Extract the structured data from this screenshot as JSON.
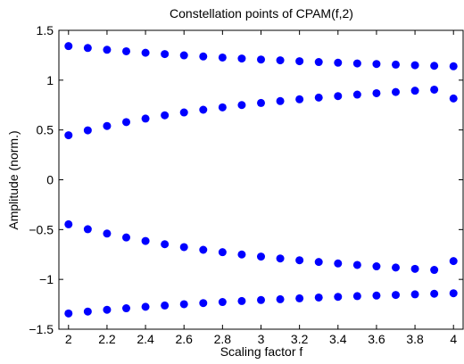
{
  "chart_data": {
    "type": "scatter",
    "title": "Constellation points of CPAM(f,2)",
    "xlabel": "Scaling factor f",
    "ylabel": "Amplitude (norm.)",
    "xlim": [
      1.95,
      4.05
    ],
    "ylim": [
      -1.5,
      1.5
    ],
    "x_ticks": [
      2,
      2.2,
      2.4,
      2.6,
      2.8,
      3,
      3.2,
      3.4,
      3.6,
      3.8,
      4
    ],
    "x_tick_labels": [
      "2",
      "2.2",
      "2.4",
      "2.6",
      "2.8",
      "3",
      "3.2",
      "3.4",
      "3.6",
      "3.8",
      "4"
    ],
    "y_ticks": [
      -1.5,
      -1,
      -0.5,
      0,
      0.5,
      1,
      1.5
    ],
    "y_tick_labels": [
      "−1.5",
      "−1",
      "−0.5",
      "0",
      "0.5",
      "1",
      "1.5"
    ],
    "grid": false,
    "marker_color": "#0000ff",
    "x": [
      2,
      2.1,
      2.2,
      2.3,
      2.4,
      2.5,
      2.6,
      2.7,
      2.8,
      2.9,
      3,
      3.1,
      3.2,
      3.3,
      3.4,
      3.5,
      3.6,
      3.7,
      3.8,
      3.9,
      4
    ],
    "series": [
      {
        "values": [
          1.342,
          1.323,
          1.305,
          1.29,
          1.275,
          1.262,
          1.249,
          1.238,
          1.227,
          1.217,
          1.207,
          1.199,
          1.19,
          1.182,
          1.175,
          1.168,
          1.162,
          1.156,
          1.15,
          1.144,
          1.139
        ]
      },
      {
        "values": [
          0.447,
          0.496,
          0.54,
          0.579,
          0.614,
          0.647,
          0.676,
          0.703,
          0.727,
          0.75,
          0.771,
          0.79,
          0.808,
          0.825,
          0.84,
          0.855,
          0.869,
          0.881,
          0.894,
          0.905,
          0.816
        ]
      },
      {
        "values": [
          -0.447,
          -0.496,
          -0.54,
          -0.579,
          -0.614,
          -0.647,
          -0.676,
          -0.703,
          -0.727,
          -0.75,
          -0.771,
          -0.79,
          -0.808,
          -0.825,
          -0.84,
          -0.855,
          -0.869,
          -0.881,
          -0.894,
          -0.905,
          -0.816
        ]
      },
      {
        "values": [
          -1.342,
          -1.323,
          -1.305,
          -1.29,
          -1.275,
          -1.262,
          -1.249,
          -1.238,
          -1.227,
          -1.217,
          -1.207,
          -1.199,
          -1.19,
          -1.182,
          -1.175,
          -1.168,
          -1.162,
          -1.156,
          -1.15,
          -1.144,
          -1.139
        ]
      }
    ]
  }
}
